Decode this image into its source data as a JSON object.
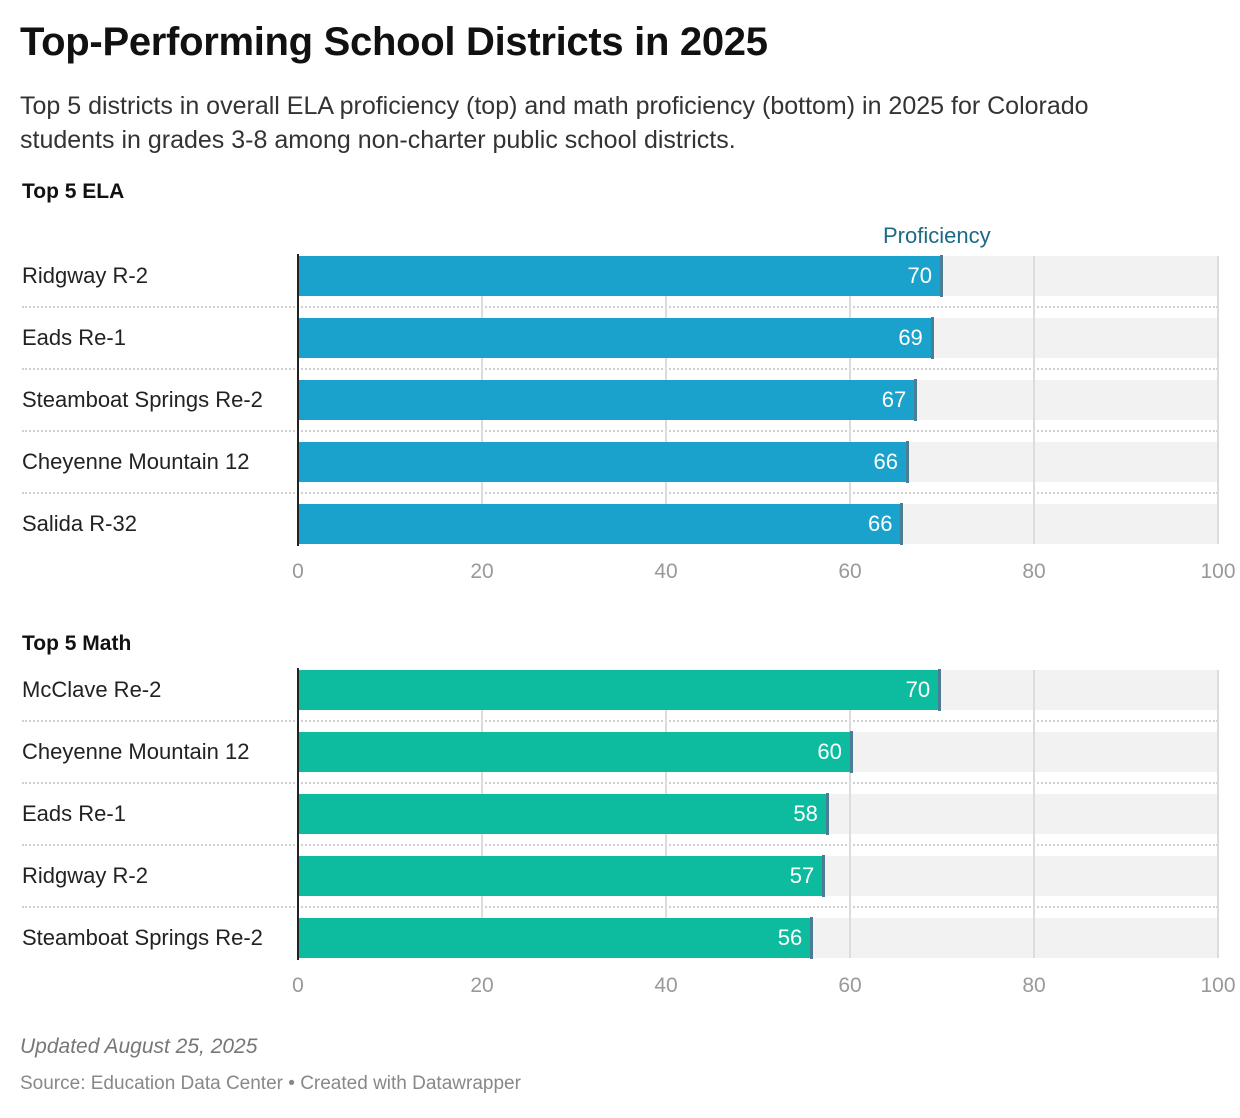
{
  "title": "Top-Performing School Districts in 2025",
  "subtitle": "Top 5 districts in overall ELA proficiency (top) and math proficiency (bottom) in 2025 for Colorado students in grades 3-8 among non-charter public school districts.",
  "column_header": "Proficiency",
  "notes": "Updated August 25, 2025",
  "source": "Source: Education Data Center • Created with Datawrapper",
  "chart_data": [
    {
      "type": "bar",
      "orientation": "horizontal",
      "title": "Top 5 ELA",
      "color": "#1aa1cc",
      "categories": [
        "Ridgway R-2",
        "Eads Re-1",
        "Steamboat Springs Re-2",
        "Cheyenne Mountain 12",
        "Salida R-32"
      ],
      "values": [
        70,
        69,
        67.2,
        66.3,
        65.7
      ],
      "labels": [
        "70",
        "69",
        "67",
        "66",
        "66"
      ],
      "xlim": [
        0,
        100
      ],
      "ticks": [
        "0",
        "20",
        "40",
        "60",
        "80",
        "100"
      ],
      "grid": true
    },
    {
      "type": "bar",
      "orientation": "horizontal",
      "title": "Top 5 Math",
      "color": "#0dbc9f",
      "categories": [
        "McClave Re-2",
        "Cheyenne Mountain 12",
        "Eads Re-1",
        "Ridgway R-2",
        "Steamboat Springs Re-2"
      ],
      "values": [
        69.8,
        60.2,
        57.6,
        57.2,
        55.9
      ],
      "labels": [
        "70",
        "60",
        "58",
        "57",
        "56"
      ],
      "xlim": [
        0,
        100
      ],
      "ticks": [
        "0",
        "20",
        "40",
        "60",
        "80",
        "100"
      ],
      "grid": true
    }
  ]
}
